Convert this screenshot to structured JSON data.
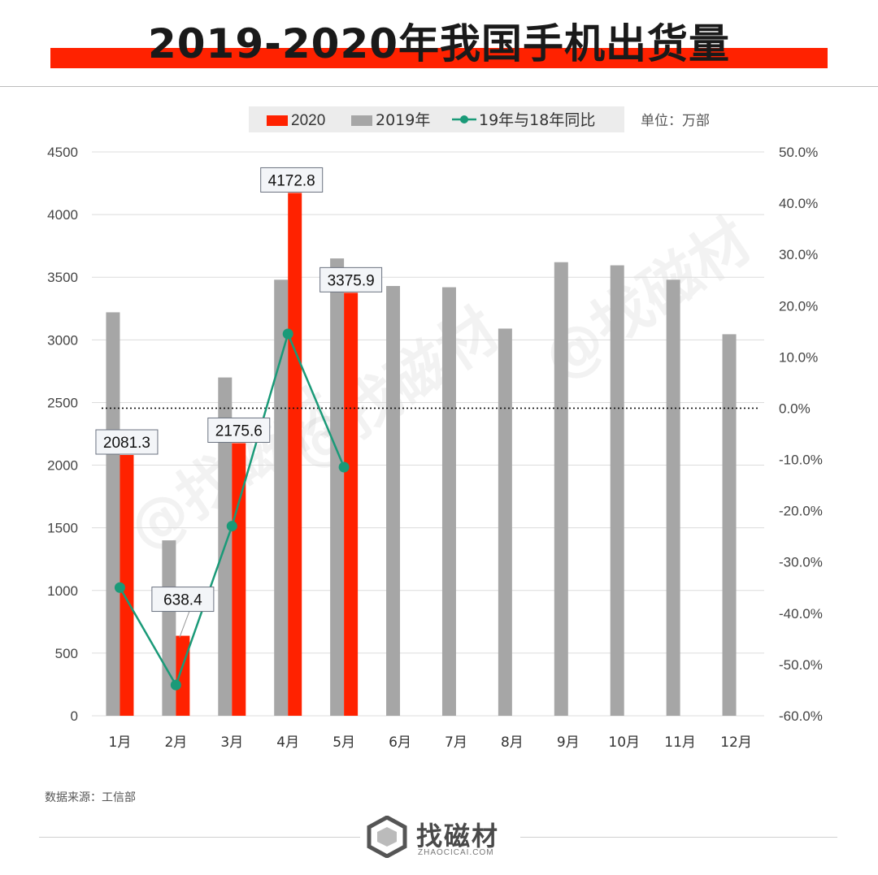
{
  "header": {
    "title": "2019-2020年我国手机出货量"
  },
  "chart_data": {
    "type": "bar",
    "categories": [
      "1月",
      "2月",
      "3月",
      "4月",
      "5月",
      "6月",
      "7月",
      "8月",
      "9月",
      "10月",
      "11月",
      "12月"
    ],
    "series": [
      {
        "name": "2020",
        "type": "bar",
        "color": "#ff2200",
        "values": [
          2081.3,
          638.4,
          2175.6,
          4172.8,
          3375.9,
          null,
          null,
          null,
          null,
          null,
          null,
          null
        ]
      },
      {
        "name": "2019年",
        "type": "bar",
        "color": "#a6a6a6",
        "values": [
          3220,
          1400,
          2700,
          3480,
          3650,
          3430,
          3420,
          3090,
          3620,
          3595,
          3480,
          3045
        ]
      },
      {
        "name": "19年与18年同比",
        "type": "line",
        "axis": "right",
        "color": "#1a9a78",
        "values": [
          -35.0,
          -54.0,
          -23.0,
          14.5,
          -11.5,
          null,
          null,
          null,
          null,
          null,
          null,
          null
        ]
      }
    ],
    "data_labels": [
      "2081.3",
      "638.4",
      "2175.6",
      "4172.8",
      "3375.9"
    ],
    "unit_note": "单位：万部",
    "y_left": {
      "min": 0,
      "max": 4500,
      "step": 500,
      "ticks": [
        "0",
        "500",
        "1000",
        "1500",
        "2000",
        "2500",
        "3000",
        "3500",
        "4000",
        "4500"
      ]
    },
    "y_right": {
      "min": -60,
      "max": 50,
      "step": 10,
      "ticks": [
        "-60.0%",
        "-50.0%",
        "-40.0%",
        "-30.0%",
        "-20.0%",
        "-10.0%",
        "0.0%",
        "10.0%",
        "20.0%",
        "30.0%",
        "40.0%",
        "50.0%"
      ]
    },
    "zero_reference": "dotted line at 0.0%",
    "grid": true,
    "legend_position": "top"
  },
  "watermark": {
    "text": "@找磁材"
  },
  "footer": {
    "source": "数据来源：工信部",
    "logo_name": "找磁材",
    "logo_url": "ZHAOCICAI.COM"
  }
}
